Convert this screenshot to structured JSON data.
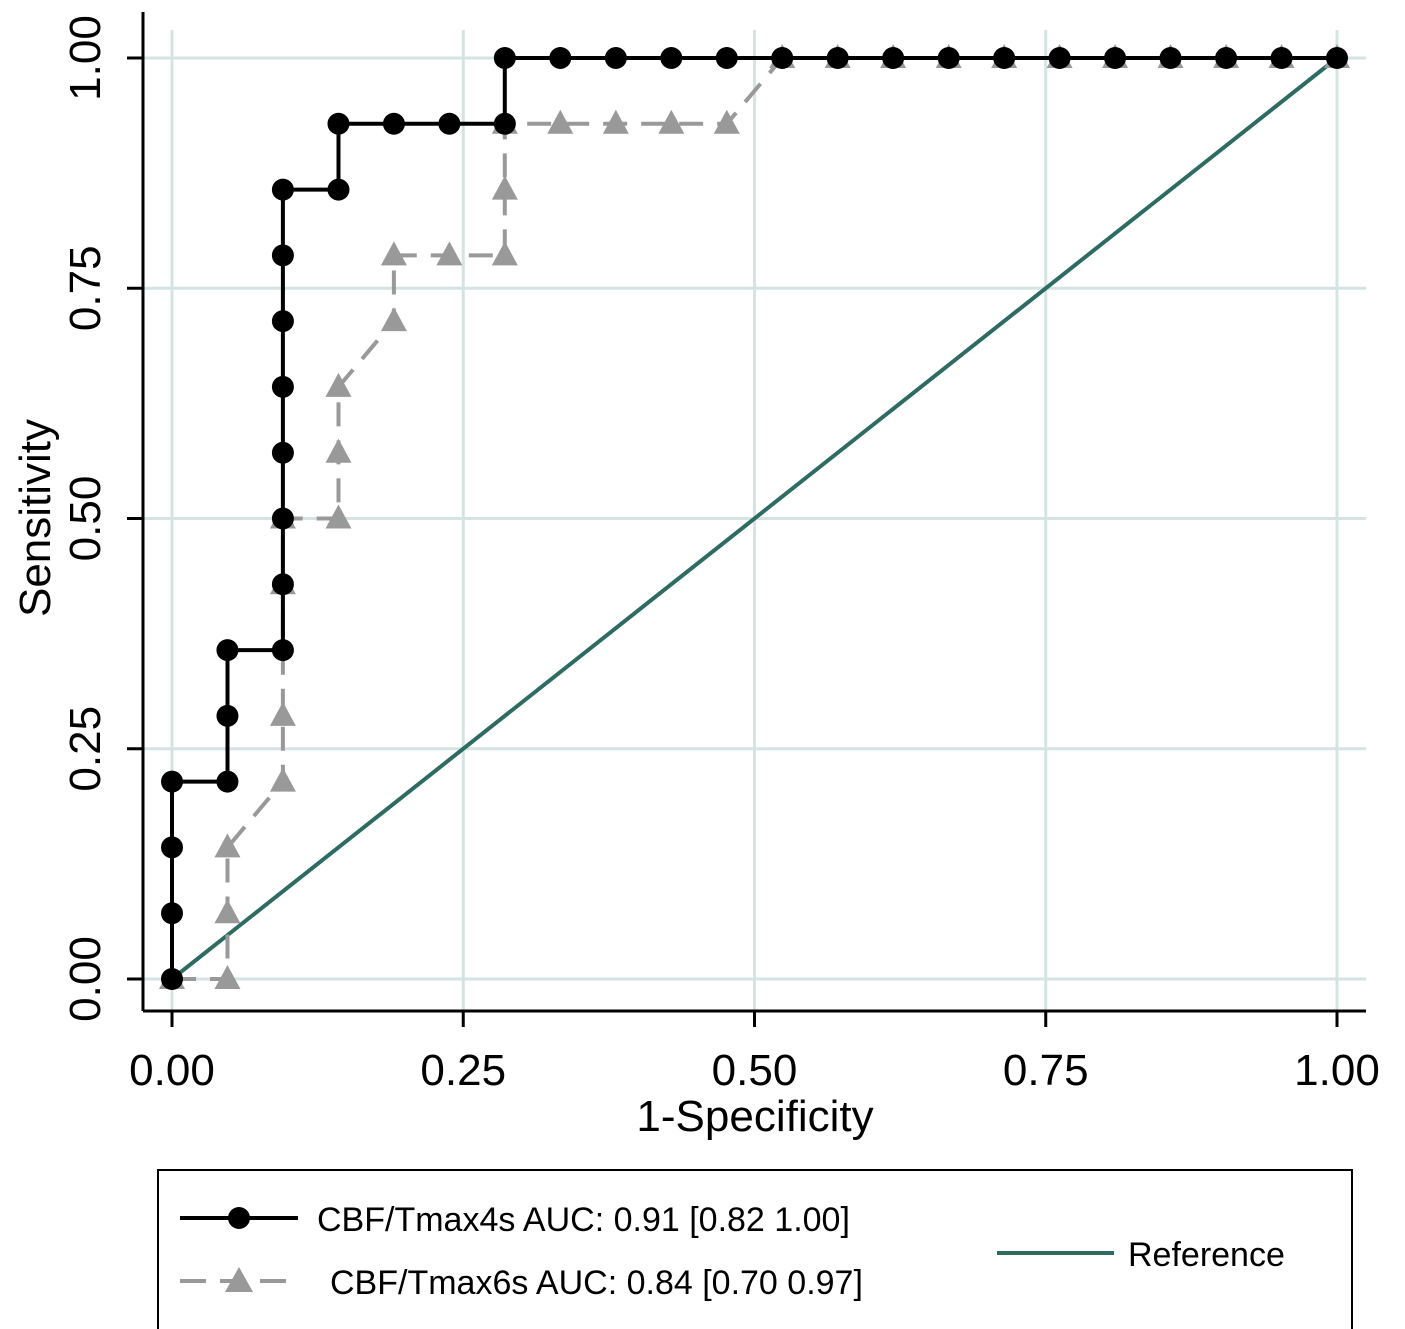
{
  "chart_data": {
    "type": "line",
    "xlabel": "1-Specificity",
    "ylabel": "Sensitivity",
    "xlim": [
      0,
      1
    ],
    "ylim": [
      0,
      1
    ],
    "xticks": [
      "0.00",
      "0.25",
      "0.50",
      "0.75",
      "1.00"
    ],
    "yticks": [
      "0.00",
      "0.25",
      "0.50",
      "0.75",
      "1.00"
    ],
    "grid": true,
    "legend_position": "bottom",
    "series": [
      {
        "name": "CBF/Tmax4s",
        "legend_label": "CBF/Tmax4s  AUC: 0.91 [0.82 1.00]",
        "marker": "circle",
        "line_style": "solid",
        "color": "#000000",
        "x": [
          0,
          0,
          0,
          0,
          0.0476,
          0.0476,
          0.0476,
          0.0952,
          0.0952,
          0.0952,
          0.0952,
          0.0952,
          0.0952,
          0.0952,
          0.0952,
          0.1429,
          0.1429,
          0.1905,
          0.2381,
          0.2857,
          0.2857,
          0.3333,
          0.381,
          0.4286,
          0.4762,
          0.5238,
          0.5714,
          0.619,
          0.6667,
          0.7143,
          0.7619,
          0.8095,
          0.8571,
          0.9048,
          0.9524,
          1.0
        ],
        "y": [
          0,
          0.0714,
          0.1429,
          0.2143,
          0.2143,
          0.2857,
          0.3571,
          0.3571,
          0.4286,
          0.5,
          0.5714,
          0.6429,
          0.7143,
          0.7857,
          0.8571,
          0.8571,
          0.9286,
          0.9286,
          0.9286,
          0.9286,
          1.0,
          1.0,
          1.0,
          1.0,
          1.0,
          1.0,
          1.0,
          1.0,
          1.0,
          1.0,
          1.0,
          1.0,
          1.0,
          1.0,
          1.0,
          1.0
        ]
      },
      {
        "name": "CBF/Tmax6s",
        "legend_label": "CBF/Tmax6s AUC: 0.84 [0.70 0.97]",
        "marker": "triangle",
        "line_style": "dashed",
        "color": "#999999",
        "x": [
          0,
          0.0476,
          0.0476,
          0.0476,
          0.0952,
          0.0952,
          0.0952,
          0.0952,
          0.1429,
          0.1429,
          0.1429,
          0.1905,
          0.1905,
          0.2381,
          0.2857,
          0.2857,
          0.2857,
          0.3333,
          0.381,
          0.4286,
          0.4762,
          0.5238,
          0.5714,
          0.619,
          0.6667,
          0.7143,
          0.7619,
          0.8095,
          0.8571,
          0.9048,
          0.9524,
          1.0
        ],
        "y": [
          0,
          0,
          0.0714,
          0.1429,
          0.2143,
          0.2857,
          0.4286,
          0.5,
          0.5,
          0.5714,
          0.6429,
          0.7143,
          0.7857,
          0.7857,
          0.7857,
          0.8571,
          0.9286,
          0.9286,
          0.9286,
          0.9286,
          0.9286,
          1.0,
          1.0,
          1.0,
          1.0,
          1.0,
          1.0,
          1.0,
          1.0,
          1.0,
          1.0,
          1.0
        ]
      },
      {
        "name": "Reference",
        "legend_label": "Reference",
        "marker": "none",
        "line_style": "solid",
        "color": "#2e6b62",
        "x": [
          0,
          1
        ],
        "y": [
          0,
          1
        ]
      }
    ],
    "colors": {
      "grid": "#d6e3e3"
    }
  }
}
